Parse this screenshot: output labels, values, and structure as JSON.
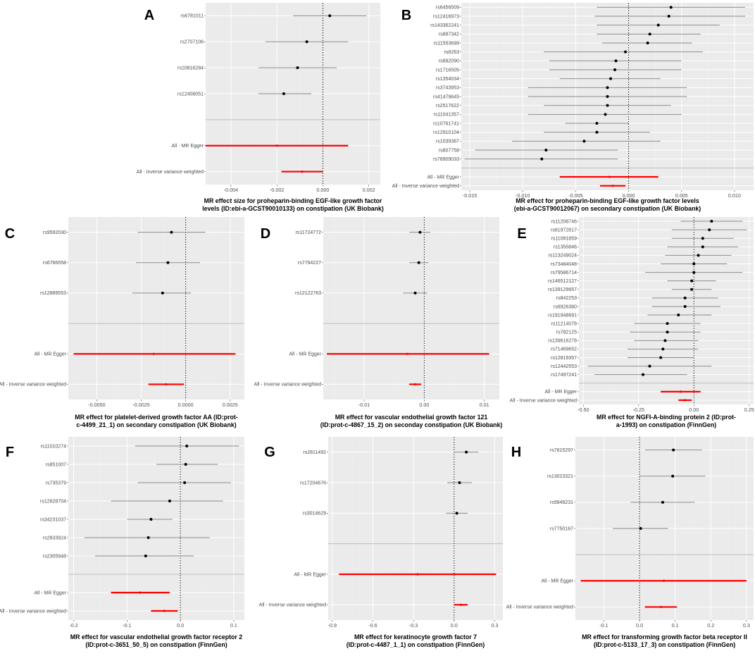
{
  "figure": {
    "description_free": true
  },
  "colors": {
    "panel_bg": "#ebebeb",
    "grid_minor": "#f2f2f2",
    "grid_major": "#ffffff",
    "snp": "#000000",
    "snp_ci": "#8c8c8c",
    "summary": "#ff0000",
    "sep_line": "#bdbdbd"
  },
  "chart_data": [
    {
      "panel": "A",
      "type": "scatter",
      "title": "MR effect size for proheparin-binding EGF-like growth factor levels (ID:ebi-a-GCST90010133) on constipation (UK Biobank)",
      "title_lines": [
        "MR effect size for proheparin-binding EGF-like growth factor",
        "levels (ID:ebi-a-GCST90010133) on constipation (UK Biobank)"
      ],
      "xlim": [
        -0.0051,
        0.0025
      ],
      "xticks": [
        -0.004,
        -0.002,
        0.0,
        0.002
      ],
      "xtick_labels": [
        "-0.004",
        "-0.002",
        "0.000",
        "0.002"
      ],
      "snps": [
        {
          "label": "rs6781011",
          "est": 0.0003,
          "lo": -0.0013,
          "hi": 0.0019
        },
        {
          "label": "rs2707106",
          "est": -0.0007,
          "lo": -0.0025,
          "hi": 0.0011
        },
        {
          "label": "rs10816284",
          "est": -0.0011,
          "lo": -0.0028,
          "hi": 0.0006
        },
        {
          "label": "rs12408051",
          "est": -0.0017,
          "lo": -0.0028,
          "hi": -0.0005
        }
      ],
      "summaries": [
        {
          "label": "All - MR Egger",
          "est": -0.002,
          "lo": -0.0051,
          "hi": 0.0011
        },
        {
          "label": "All - Inverse variance weighted",
          "est": -0.0009,
          "lo": -0.0018,
          "hi": 0.0
        }
      ]
    },
    {
      "panel": "B",
      "type": "scatter",
      "title": "MR effect for proheparin-binding EGF-like growth factor levels (ebi-a-GCST90012067) on secondary constipation (UK Biobank)",
      "title_lines": [
        "MR effect for proheparin-binding EGF-like growth factor levels",
        "(ebi-a-GCST90012067) on secondary constipation (UK Biobank)"
      ],
      "xlim": [
        -0.0158,
        0.0118
      ],
      "xticks": [
        -0.015,
        -0.01,
        -0.005,
        0.0,
        0.005,
        0.01
      ],
      "xtick_labels": [
        "-0.015",
        "-0.010",
        "-0.005",
        "0.000",
        "0.005",
        "0.010"
      ],
      "snps": [
        {
          "label": "rs6456509",
          "est": 0.004,
          "lo": -0.003,
          "hi": 0.011
        },
        {
          "label": "rs12416973",
          "est": 0.0038,
          "lo": -0.0032,
          "hi": 0.011
        },
        {
          "label": "rs143362241",
          "est": 0.0028,
          "lo": -0.003,
          "hi": 0.0086
        },
        {
          "label": "rs887342",
          "est": 0.002,
          "lo": -0.003,
          "hi": 0.0068
        },
        {
          "label": "rs11553699",
          "est": 0.0018,
          "lo": -0.0025,
          "hi": 0.006
        },
        {
          "label": "rs8263",
          "est": -0.0003,
          "lo": -0.008,
          "hi": 0.007
        },
        {
          "label": "rs892090",
          "est": -0.0012,
          "lo": -0.0075,
          "hi": 0.005
        },
        {
          "label": "rs1716505",
          "est": -0.0013,
          "lo": -0.0075,
          "hi": 0.005
        },
        {
          "label": "rs1354034",
          "est": -0.0017,
          "lo": -0.0065,
          "hi": 0.003
        },
        {
          "label": "rs3743953",
          "est": -0.002,
          "lo": -0.0095,
          "hi": 0.0055
        },
        {
          "label": "rs41479645",
          "est": -0.002,
          "lo": -0.0095,
          "hi": 0.0055
        },
        {
          "label": "rs2517622",
          "est": -0.002,
          "lo": -0.008,
          "hi": 0.004
        },
        {
          "label": "rs11041357",
          "est": -0.0022,
          "lo": -0.0095,
          "hi": 0.005
        },
        {
          "label": "rs10761741",
          "est": -0.003,
          "lo": -0.006,
          "hi": 0.0
        },
        {
          "label": "rs12910104",
          "est": -0.003,
          "lo": -0.008,
          "hi": 0.002
        },
        {
          "label": "rs1039387",
          "est": -0.0042,
          "lo": -0.011,
          "hi": 0.003
        },
        {
          "label": "rs807758",
          "est": -0.0078,
          "lo": -0.0145,
          "hi": -0.001
        },
        {
          "label": "rs78909033",
          "est": -0.0082,
          "lo": -0.0155,
          "hi": -0.001
        }
      ],
      "summaries": [
        {
          "label": "All - MR Egger",
          "est": -0.0018,
          "lo": -0.0065,
          "hi": 0.0028
        },
        {
          "label": "All - Inverse variance weighted",
          "est": -0.0015,
          "lo": -0.0027,
          "hi": -0.0003
        }
      ]
    },
    {
      "panel": "C",
      "type": "scatter",
      "title": "MR effect for platelet-derived growth factor AA (ID:prot-c-4499_21_1) on secondary constipation (UK Biobank)",
      "title_lines": [
        "MR effect for platelet-derived growth factor AA (ID:prot-",
        "c-4499_21_1) on secondary constipation (UK Biobank)"
      ],
      "xlim": [
        -0.0066,
        0.0033
      ],
      "xticks": [
        -0.005,
        -0.0025,
        0.0,
        0.0025
      ],
      "xtick_labels": [
        "-0.0050",
        "-0.0025",
        "0.0000",
        "0.0025"
      ],
      "snps": [
        {
          "label": "rs9592030",
          "est": -0.0008,
          "lo": -0.0027,
          "hi": 0.0011
        },
        {
          "label": "rs6766558",
          "est": -0.001,
          "lo": -0.0028,
          "hi": 0.0008
        },
        {
          "label": "rs12889553",
          "est": -0.0013,
          "lo": -0.003,
          "hi": 0.0003
        }
      ],
      "summaries": [
        {
          "label": "All - MR Egger",
          "est": -0.0018,
          "lo": -0.0063,
          "hi": 0.0028
        },
        {
          "label": "All - Inverse variance weighted",
          "est": -0.0011,
          "lo": -0.0021,
          "hi": -0.0001
        }
      ]
    },
    {
      "panel": "D",
      "type": "scatter",
      "title": "MR effect for vascular endothelial growth factor 121 (ID:prot-c-4867_15_2) on seconday constipation (UK Biobank)",
      "title_lines": [
        "MR effect for vascular endothelial growth factor 121",
        "(ID:prot-c-4867_15_2) on seconday constipation (UK Biobank)"
      ],
      "xlim": [
        -0.0168,
        0.0125
      ],
      "xticks": [
        -0.01,
        0.0,
        0.01
      ],
      "xtick_labels": [
        "-0.01",
        "0.00",
        "0.01"
      ],
      "snps": [
        {
          "label": "rs11724772",
          "est": -0.0007,
          "lo": -0.0025,
          "hi": 0.001
        },
        {
          "label": "rs7764227",
          "est": -0.0009,
          "lo": -0.0025,
          "hi": 0.0007
        },
        {
          "label": "rs12122763",
          "est": -0.0015,
          "lo": -0.0035,
          "hi": 0.0005
        }
      ],
      "summaries": [
        {
          "label": "All - MR Egger",
          "est": -0.0028,
          "lo": -0.0162,
          "hi": 0.0108
        },
        {
          "label": "All - Inverse variance weighted",
          "est": -0.0015,
          "lo": -0.0025,
          "hi": -0.0005
        }
      ]
    },
    {
      "panel": "E",
      "type": "scatter",
      "title": "MR effect for NGFI-A-binding protein 2 (ID:prot-a-1993) on constipation (FinnGen)",
      "title_lines": [
        "MR effect for NGFI-A-binding protein 2  (ID:prot-",
        "a-1993) on constipation (FinnGen)"
      ],
      "xlim": [
        -0.52,
        0.27
      ],
      "xticks": [
        -0.5,
        -0.25,
        0.0,
        0.25
      ],
      "xtick_labels": [
        "-0.50",
        "-0.25",
        "0.00",
        "0.25"
      ],
      "snps": [
        {
          "label": "rs11208746",
          "est": 0.08,
          "lo": -0.06,
          "hi": 0.22
        },
        {
          "label": "rs61972817",
          "est": 0.07,
          "lo": -0.1,
          "hi": 0.24
        },
        {
          "label": "rs11081859",
          "est": 0.04,
          "lo": -0.1,
          "hi": 0.18
        },
        {
          "label": "rs1355846",
          "est": 0.04,
          "lo": -0.12,
          "hi": 0.2
        },
        {
          "label": "rs113249024",
          "est": 0.02,
          "lo": -0.13,
          "hi": 0.17
        },
        {
          "label": "rs73484048",
          "est": 0.0,
          "lo": -0.15,
          "hi": 0.15
        },
        {
          "label": "rs79586714",
          "est": 0.0,
          "lo": -0.22,
          "hi": 0.22
        },
        {
          "label": "rs146512127",
          "est": -0.01,
          "lo": -0.12,
          "hi": 0.1
        },
        {
          "label": "rs139129657",
          "est": -0.01,
          "lo": -0.1,
          "hi": 0.08
        },
        {
          "label": "rs842253",
          "est": -0.04,
          "lo": -0.19,
          "hi": 0.11
        },
        {
          "label": "rs6926380",
          "est": -0.04,
          "lo": -0.19,
          "hi": 0.12
        },
        {
          "label": "rs191948691",
          "est": -0.07,
          "lo": -0.21,
          "hi": 0.08
        },
        {
          "label": "rs11214078",
          "est": -0.12,
          "lo": -0.27,
          "hi": 0.03
        },
        {
          "label": "rs782125",
          "est": -0.12,
          "lo": -0.29,
          "hi": 0.03
        },
        {
          "label": "rs139616278",
          "est": -0.13,
          "lo": -0.27,
          "hi": 0.02
        },
        {
          "label": "rs71469652",
          "est": -0.14,
          "lo": -0.3,
          "hi": 0.02
        },
        {
          "label": "rs12819357",
          "est": -0.15,
          "lo": -0.3,
          "hi": 0.0
        },
        {
          "label": "rs12442553",
          "est": -0.2,
          "lo": -0.48,
          "hi": 0.08
        },
        {
          "label": "rs17497241",
          "est": -0.23,
          "lo": -0.45,
          "hi": -0.03
        }
      ],
      "summaries": [
        {
          "label": "All - MR Egger",
          "est": -0.06,
          "lo": -0.15,
          "hi": 0.03
        },
        {
          "label": "All - Inverse variance weighted",
          "est": -0.04,
          "lo": -0.07,
          "hi": -0.01
        }
      ]
    },
    {
      "panel": "F",
      "type": "scatter",
      "title": "MR effect for vascular endothelial growth factor receptor 2 (ID:prot-c-3651_50_5) on constipation (FinnGen)",
      "title_lines": [
        "MR effect for vascular endothelial growth factor receptor 2",
        "(ID:prot-c-3651_50_5) on constipation (FinnGen)"
      ],
      "xlim": [
        -0.21,
        0.12
      ],
      "xticks": [
        -0.2,
        -0.1,
        0.0,
        0.1
      ],
      "xtick_labels": [
        "-0.2",
        "-0.1",
        "0.0",
        "0.1"
      ],
      "snps": [
        {
          "label": "rs11010274",
          "est": 0.012,
          "lo": -0.085,
          "hi": 0.11
        },
        {
          "label": "rs851007",
          "est": 0.01,
          "lo": -0.045,
          "hi": 0.07
        },
        {
          "label": "rs735379",
          "est": 0.008,
          "lo": -0.08,
          "hi": 0.095
        },
        {
          "label": "rs12628704",
          "est": -0.02,
          "lo": -0.13,
          "hi": 0.08
        },
        {
          "label": "rs34231037",
          "est": -0.055,
          "lo": -0.1,
          "hi": -0.015
        },
        {
          "label": "rs2833924",
          "est": -0.06,
          "lo": -0.18,
          "hi": 0.055
        },
        {
          "label": "rs2305948",
          "est": -0.065,
          "lo": -0.16,
          "hi": 0.025
        }
      ],
      "summaries": [
        {
          "label": "All - MR Egger",
          "est": -0.075,
          "lo": -0.13,
          "hi": -0.02
        },
        {
          "label": "All - Inverse variance weighted",
          "est": -0.03,
          "lo": -0.055,
          "hi": -0.005
        }
      ]
    },
    {
      "panel": "G",
      "type": "scatter",
      "title": "MR effect  for keratinocyte growth factor 7 (ID:prot-c-4487_1_1) on constipation (FinnGen)",
      "title_lines": [
        "MR effect  for keratinocyte growth factor 7",
        "(ID:prot-c-4487_1_1) on constipation (FinnGen)"
      ],
      "xlim": [
        -0.93,
        0.36
      ],
      "xticks": [
        -0.9,
        -0.6,
        -0.3,
        0.0,
        0.3
      ],
      "xtick_labels": [
        "-0.9",
        "-0.6",
        "-0.3",
        "0.0",
        "0.3"
      ],
      "snps": [
        {
          "label": "rs2811492",
          "est": 0.09,
          "lo": 0.0,
          "hi": 0.18
        },
        {
          "label": "rs17204676",
          "est": 0.04,
          "lo": -0.05,
          "hi": 0.13
        },
        {
          "label": "rs3014629",
          "est": 0.02,
          "lo": -0.06,
          "hi": 0.1
        }
      ],
      "summaries": [
        {
          "label": "All - MR Egger",
          "est": -0.27,
          "lo": -0.85,
          "hi": 0.31
        },
        {
          "label": "All - Inverse variance weighted",
          "est": 0.05,
          "lo": 0.0,
          "hi": 0.1
        }
      ]
    },
    {
      "panel": "H",
      "type": "scatter",
      "title": "MR effect for transforming growth factor beta receptor II (ID:prot-c-5133_17_3) on constipation (FinnGen)",
      "title_lines": [
        "MR effect for transforming growth factor beta receptor II",
        "(ID:prot-c-5133_17_3) on constipation (FinnGen)"
      ],
      "xlim": [
        -0.18,
        0.32
      ],
      "xticks": [
        -0.1,
        0.0,
        0.1,
        0.2,
        0.3
      ],
      "xtick_labels": [
        "-0.1",
        "0.0",
        "0.1",
        "0.2",
        "0.3"
      ],
      "snps": [
        {
          "label": "rs7815297",
          "est": 0.095,
          "lo": 0.015,
          "hi": 0.175
        },
        {
          "label": "rs13023321",
          "est": 0.093,
          "lo": 0.0,
          "hi": 0.185
        },
        {
          "label": "rs9849231",
          "est": 0.065,
          "lo": -0.025,
          "hi": 0.155
        },
        {
          "label": "rs7750167",
          "est": 0.003,
          "lo": -0.075,
          "hi": 0.08
        }
      ],
      "summaries": [
        {
          "label": "All - MR Egger",
          "est": 0.068,
          "lo": -0.165,
          "hi": 0.3
        },
        {
          "label": "All - Inverse variance weighted",
          "est": 0.06,
          "lo": 0.015,
          "hi": 0.105
        }
      ]
    }
  ]
}
